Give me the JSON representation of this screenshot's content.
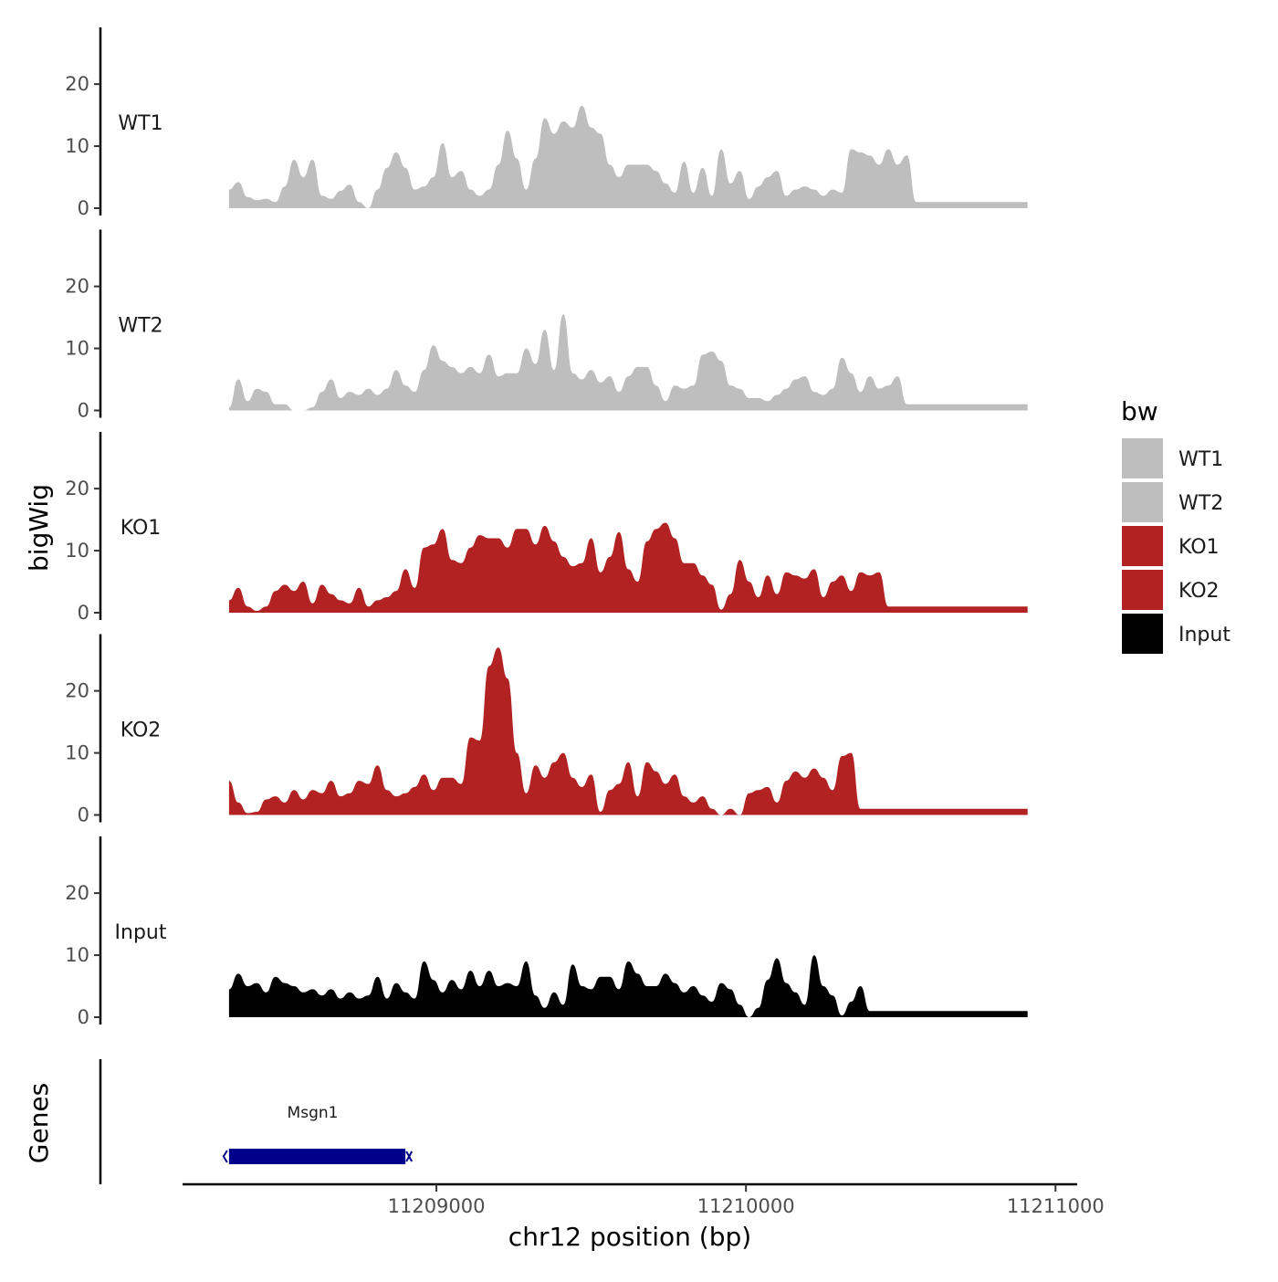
{
  "chart_data": {
    "type": "area",
    "description_tracks": "genome browser bigWig coverage tracks",
    "y_axis_title": "bigWig",
    "genes_axis_title": "Genes",
    "x_axis_title": "chr12 position (bp)",
    "xlim": [
      11208180,
      11211070
    ],
    "ylim": [
      0,
      29
    ],
    "y_ticks": [
      0,
      10,
      20
    ],
    "y_tick_labels": [
      "0",
      "10",
      "20"
    ],
    "x_ticks": [
      11209000,
      11210000,
      11211000
    ],
    "x_tick_labels": [
      "11209000",
      "11210000",
      "11211000"
    ],
    "legend": {
      "title": "bw",
      "position": "right",
      "entries": [
        {
          "label": "WT1",
          "color": "#bebebe"
        },
        {
          "label": "WT2",
          "color": "#bebebe"
        },
        {
          "label": "KO1",
          "color": "#b22222"
        },
        {
          "label": "KO2",
          "color": "#b22222"
        },
        {
          "label": "Input",
          "color": "#000000"
        }
      ]
    },
    "x_positions": [
      11208330,
      11208360,
      11208390,
      11208420,
      11208450,
      11208480,
      11208510,
      11208540,
      11208570,
      11208600,
      11208630,
      11208660,
      11208690,
      11208720,
      11208750,
      11208780,
      11208810,
      11208840,
      11208870,
      11208900,
      11208930,
      11208960,
      11208990,
      11209020,
      11209050,
      11209080,
      11209110,
      11209140,
      11209170,
      11209200,
      11209230,
      11209260,
      11209290,
      11209320,
      11209350,
      11209380,
      11209410,
      11209440,
      11209470,
      11209500,
      11209530,
      11209560,
      11209590,
      11209620,
      11209650,
      11209680,
      11209710,
      11209740,
      11209770,
      11209800,
      11209830,
      11209860,
      11209890,
      11209920,
      11209950,
      11209980,
      11210010,
      11210040,
      11210070,
      11210100,
      11210130,
      11210160,
      11210190,
      11210220,
      11210250,
      11210280,
      11210310,
      11210340,
      11210370,
      11210400,
      11210430,
      11210460,
      11210490,
      11210520,
      11210550,
      11210580,
      11210610,
      11210640,
      11210670,
      11210700,
      11210730,
      11210760,
      11210790,
      11210820,
      11210850,
      11210880,
      11210910
    ],
    "series": [
      {
        "name": "WT1",
        "color": "#bebebe",
        "values": [
          3.0,
          4.2,
          1.8,
          1.3,
          1.5,
          1.0,
          3.5,
          7.8,
          5.0,
          7.8,
          2.0,
          1.5,
          2.8,
          3.8,
          1.0,
          0.0,
          3.0,
          6.5,
          9.0,
          6.5,
          3.0,
          3.5,
          5.0,
          10.5,
          5.0,
          6.0,
          3.0,
          2.0,
          3.0,
          7.0,
          12.5,
          8.0,
          3.0,
          8.0,
          14.5,
          12.0,
          14.0,
          13.0,
          16.5,
          13.0,
          12.0,
          7.0,
          5.0,
          7.0,
          7.0,
          7.0,
          6.0,
          4.0,
          2.5,
          7.5,
          2.5,
          6.5,
          2.0,
          9.5,
          4.0,
          6.0,
          1.5,
          3.5,
          5.0,
          6.0,
          2.0,
          3.0,
          3.5,
          3.0,
          2.0,
          3.0,
          2.5,
          9.5,
          9.0,
          8.5,
          7.0,
          9.5,
          7.0,
          8.5,
          1.0,
          1.0,
          1.0,
          1.0,
          1.0,
          1.0,
          1.0,
          1.0,
          1.0,
          1.0,
          1.0,
          1.0,
          1.0
        ]
      },
      {
        "name": "WT2",
        "color": "#bebebe",
        "values": [
          0.5,
          5.0,
          1.5,
          3.5,
          3.0,
          1.0,
          1.0,
          0.0,
          0.0,
          0.5,
          3.0,
          5.0,
          2.0,
          3.0,
          2.5,
          3.5,
          2.5,
          3.5,
          6.5,
          4.0,
          3.0,
          6.5,
          10.5,
          8.0,
          7.0,
          6.0,
          7.0,
          6.0,
          9.0,
          5.5,
          6.0,
          6.0,
          10.0,
          7.5,
          13.0,
          6.5,
          15.5,
          6.0,
          5.0,
          6.5,
          4.5,
          5.5,
          3.0,
          5.5,
          7.0,
          7.0,
          4.0,
          1.5,
          4.0,
          3.5,
          4.0,
          9.0,
          9.5,
          8.0,
          4.0,
          3.5,
          2.0,
          2.0,
          1.5,
          2.5,
          3.5,
          5.0,
          5.5,
          3.0,
          2.5,
          3.5,
          8.5,
          6.0,
          3.0,
          5.5,
          3.5,
          4.0,
          5.5,
          1.0,
          1.0,
          1.0,
          1.0,
          1.0,
          1.0,
          1.0,
          1.0,
          1.0,
          1.0,
          1.0,
          1.0,
          1.0,
          1.0
        ]
      },
      {
        "name": "KO1",
        "color": "#b22222",
        "values": [
          2.0,
          4.0,
          1.0,
          0.3,
          1.0,
          3.5,
          4.5,
          3.5,
          5.0,
          1.5,
          4.5,
          3.0,
          2.0,
          1.5,
          4.0,
          1.0,
          2.0,
          2.5,
          3.5,
          7.0,
          4.0,
          10.5,
          11.0,
          13.5,
          8.5,
          8.0,
          10.5,
          12.5,
          12.0,
          12.0,
          10.5,
          13.5,
          13.5,
          11.0,
          14.0,
          11.5,
          9.0,
          7.5,
          8.0,
          12.0,
          6.5,
          9.0,
          13.0,
          7.0,
          5.0,
          11.5,
          13.5,
          14.5,
          12.0,
          8.0,
          8.0,
          6.0,
          4.5,
          0.5,
          3.0,
          8.5,
          5.0,
          2.5,
          6.0,
          3.0,
          6.5,
          6.0,
          5.5,
          7.0,
          2.5,
          5.0,
          6.0,
          3.5,
          6.5,
          6.0,
          6.5,
          1.0,
          1.0,
          1.0,
          1.0,
          1.0,
          1.0,
          1.0,
          1.0,
          1.0,
          1.0,
          1.0,
          1.0,
          1.0,
          1.0,
          1.0,
          1.0
        ]
      },
      {
        "name": "KO2",
        "color": "#b22222",
        "values": [
          5.5,
          2.0,
          0.3,
          0.5,
          2.5,
          3.0,
          2.0,
          4.0,
          2.5,
          4.0,
          3.5,
          5.5,
          3.0,
          3.5,
          5.5,
          5.0,
          8.0,
          4.0,
          3.0,
          3.5,
          4.5,
          6.5,
          4.0,
          6.0,
          6.0,
          5.0,
          12.5,
          12.0,
          24.0,
          27.0,
          22.0,
          10.0,
          3.5,
          8.0,
          6.0,
          8.5,
          10.0,
          6.0,
          4.5,
          6.5,
          0.5,
          4.0,
          5.0,
          8.5,
          3.0,
          8.5,
          7.0,
          5.0,
          6.5,
          3.0,
          2.0,
          3.0,
          1.0,
          0.0,
          1.0,
          0.0,
          3.5,
          4.0,
          4.5,
          2.0,
          5.5,
          7.0,
          6.0,
          7.5,
          6.0,
          4.0,
          9.5,
          10.0,
          1.0,
          1.0,
          1.0,
          1.0,
          1.0,
          1.0,
          1.0,
          1.0,
          1.0,
          1.0,
          1.0,
          1.0,
          1.0,
          1.0,
          1.0,
          1.0,
          1.0,
          1.0,
          1.0
        ]
      },
      {
        "name": "Input",
        "color": "#000000",
        "values": [
          4.5,
          7.0,
          5.0,
          5.5,
          4.0,
          6.5,
          5.5,
          5.0,
          4.0,
          4.5,
          3.5,
          4.5,
          3.0,
          4.0,
          3.0,
          3.5,
          6.5,
          3.0,
          5.5,
          4.0,
          3.0,
          9.0,
          6.0,
          4.0,
          6.0,
          4.5,
          7.5,
          5.0,
          7.5,
          5.0,
          5.5,
          5.0,
          9.0,
          3.5,
          1.5,
          4.0,
          2.0,
          8.5,
          5.0,
          4.5,
          6.5,
          6.5,
          4.5,
          9.0,
          7.0,
          5.0,
          5.0,
          7.0,
          5.5,
          4.0,
          5.0,
          3.5,
          2.5,
          5.5,
          4.5,
          2.0,
          0.0,
          1.5,
          6.0,
          9.5,
          5.5,
          4.0,
          2.0,
          10.0,
          5.0,
          3.5,
          0.3,
          2.5,
          5.0,
          1.0,
          1.0,
          1.0,
          1.0,
          1.0,
          1.0,
          1.0,
          1.0,
          1.0,
          1.0,
          1.0,
          1.0,
          1.0,
          1.0,
          1.0,
          1.0,
          1.0,
          1.0
        ]
      }
    ],
    "genes": [
      {
        "name": "Msgn1",
        "start": 11208330,
        "end": 11208900,
        "color": "#00008b",
        "strand": "+"
      }
    ]
  }
}
